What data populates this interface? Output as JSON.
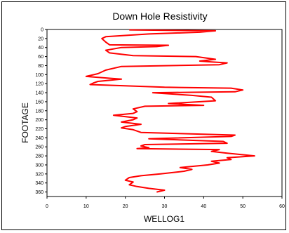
{
  "chart_data": {
    "type": "line",
    "title": "Down Hole Resistivity",
    "xlabel": "WELLOG1",
    "ylabel": "FOOTAGE",
    "xlim": [
      0,
      60
    ],
    "ylim": [
      0,
      370
    ],
    "y_inverted": true,
    "x_ticks": [
      "0",
      "10",
      "20",
      "30",
      "40",
      "50",
      "60"
    ],
    "y_ticks": [
      "0",
      "20",
      "40",
      "60",
      "80",
      "100",
      "120",
      "140",
      "160",
      "180",
      "200",
      "220",
      "240",
      "260",
      "280",
      "300",
      "320",
      "340",
      "360"
    ],
    "grid": false,
    "legend": "none",
    "line_color": "#ff0000",
    "series": [
      {
        "x": [
          21,
          43,
          39,
          26,
          15,
          14,
          15,
          16,
          31,
          28,
          19,
          15,
          16,
          22,
          38,
          43,
          39,
          42,
          46,
          44,
          19,
          15,
          13,
          10,
          16,
          19,
          13,
          12,
          11,
          30,
          47,
          50,
          48,
          27,
          37,
          42,
          43,
          31,
          40,
          25,
          22,
          23,
          22,
          17,
          23,
          22,
          19,
          24,
          20,
          19,
          22,
          24,
          48,
          47,
          26,
          45,
          46,
          25,
          24,
          26,
          23,
          44,
          42,
          46,
          53,
          46,
          47,
          42,
          44,
          41,
          34,
          37,
          35,
          29,
          24,
          21,
          20,
          22,
          21,
          23,
          26,
          30,
          28
        ],
        "y": [
          1,
          3,
          6,
          10,
          16,
          20,
          28,
          34,
          35,
          38,
          40,
          46,
          52,
          58,
          60,
          66,
          70,
          72,
          74,
          78,
          82,
          90,
          98,
          104,
          108,
          110,
          115,
          118,
          122,
          128,
          130,
          134,
          138,
          140,
          146,
          150,
          158,
          164,
          168,
          170,
          176,
          182,
          186,
          190,
          196,
          200,
          205,
          210,
          215,
          218,
          222,
          228,
          234,
          237,
          242,
          248,
          252,
          255,
          258,
          262,
          264,
          266,
          270,
          274,
          280,
          284,
          288,
          292,
          296,
          300,
          306,
          310,
          314,
          320,
          324,
          328,
          334,
          338,
          344,
          348,
          352,
          356,
          360
        ]
      }
    ]
  }
}
